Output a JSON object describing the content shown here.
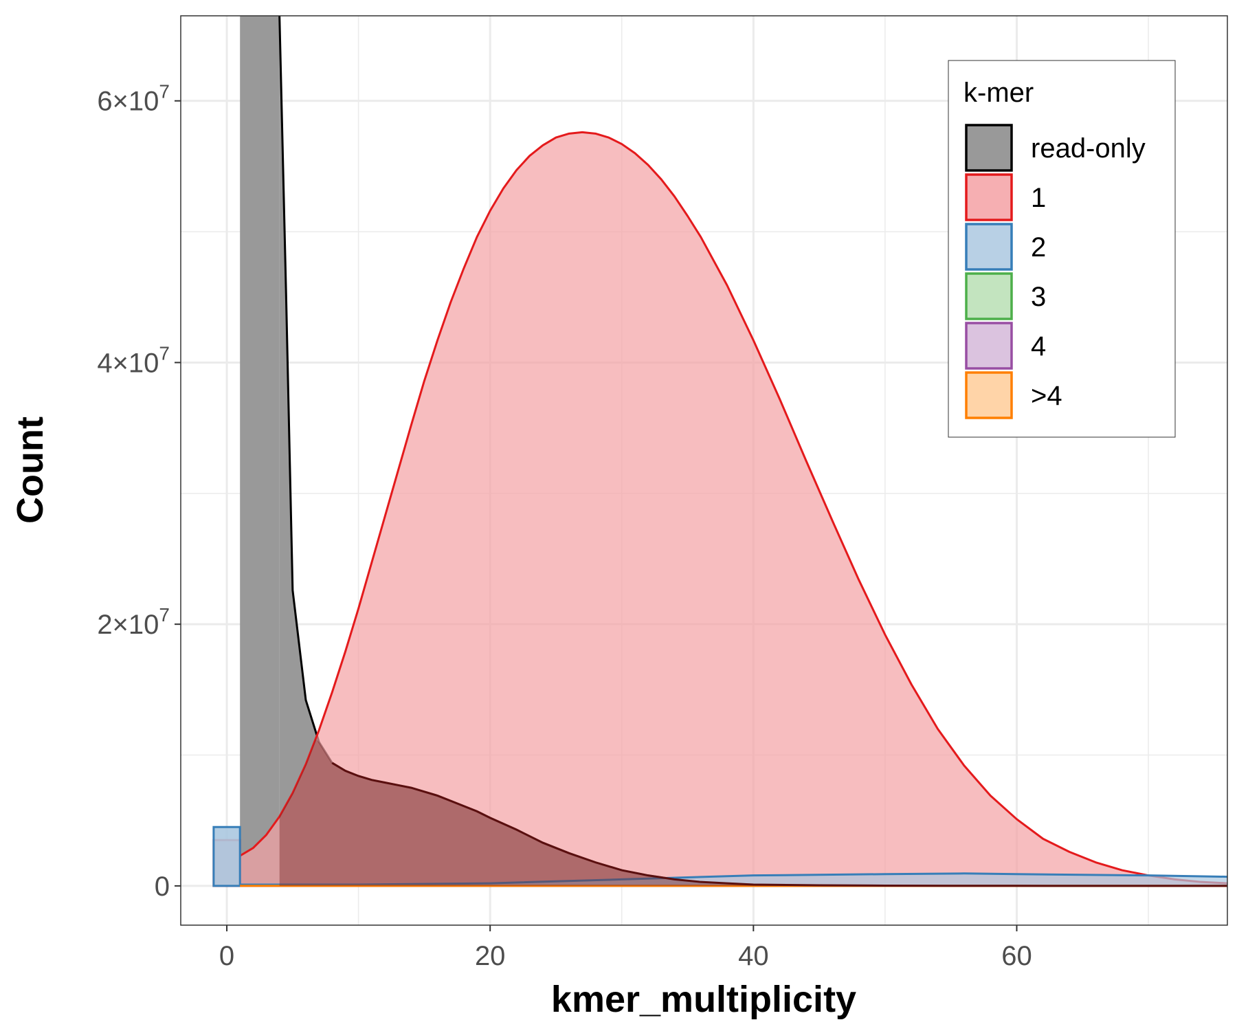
{
  "chart_data": {
    "type": "area",
    "xlabel": "kmer_multiplicity",
    "ylabel": "Count",
    "xlim": [
      -3.5,
      76
    ],
    "ylim": [
      -3000000,
      66500000
    ],
    "x_ticks": [
      {
        "value": 0,
        "label": "0"
      },
      {
        "value": 20,
        "label": "20"
      },
      {
        "value": 40,
        "label": "40"
      },
      {
        "value": 60,
        "label": "60"
      }
    ],
    "y_ticks": [
      {
        "value": 0,
        "mantissa": "0",
        "exponent": ""
      },
      {
        "value": 20000000,
        "mantissa": "2",
        "exponent": "7"
      },
      {
        "value": 40000000,
        "mantissa": "4",
        "exponent": "7"
      },
      {
        "value": 60000000,
        "mantissa": "6",
        "exponent": "7"
      }
    ],
    "grid": true,
    "legend": {
      "title": "k-mer",
      "placement": "top-right",
      "entries": [
        "read-only",
        "1",
        "2",
        "3",
        "4",
        ">4"
      ]
    },
    "series": [
      {
        "name": "read-only",
        "fill": "#999999",
        "stroke": "#000000",
        "bar": {
          "x0": 1,
          "x1": 4,
          "y": 66500000
        },
        "x": [
          4,
          4.5,
          5,
          6,
          7,
          8,
          9,
          10,
          11,
          12,
          13,
          14,
          15,
          16,
          17,
          18,
          19,
          20,
          22,
          24,
          26,
          28,
          30,
          32,
          34,
          36,
          38,
          40,
          45,
          50,
          55,
          60,
          65,
          70,
          76
        ],
        "values": [
          66500000,
          45300000,
          22600000,
          14200000,
          11000000,
          9400000,
          8800000,
          8400000,
          8100000,
          7900000,
          7700000,
          7500000,
          7200000,
          6900000,
          6500000,
          6100000,
          5700000,
          5200000,
          4300000,
          3300000,
          2500000,
          1800000,
          1200000,
          800000,
          500000,
          300000,
          200000,
          100000,
          50000,
          20000,
          10000,
          5000,
          0,
          0,
          0
        ]
      },
      {
        "name": "1",
        "fill": "#f4a1a4",
        "stroke": "#e41a1c",
        "bar": {
          "x0": -1,
          "x1": 1,
          "y": 3500000
        },
        "x": [
          1,
          2,
          3,
          4,
          5,
          6,
          7,
          8,
          9,
          10,
          11,
          12,
          13,
          14,
          15,
          16,
          17,
          18,
          19,
          20,
          21,
          22,
          23,
          24,
          25,
          26,
          27,
          28,
          29,
          30,
          31,
          32,
          33,
          34,
          35,
          36,
          38,
          40,
          42,
          44,
          46,
          48,
          50,
          52,
          54,
          56,
          58,
          60,
          62,
          64,
          66,
          68,
          70,
          72,
          74,
          76
        ],
        "values": [
          2300000,
          2900000,
          3900000,
          5300000,
          7100000,
          9300000,
          11900000,
          14800000,
          17900000,
          21200000,
          24700000,
          28200000,
          31700000,
          35200000,
          38600000,
          41700000,
          44600000,
          47200000,
          49600000,
          51600000,
          53300000,
          54700000,
          55800000,
          56600000,
          57200000,
          57500000,
          57600000,
          57500000,
          57200000,
          56700000,
          56000000,
          55100000,
          54000000,
          52700000,
          51200000,
          49600000,
          45900000,
          41700000,
          37200000,
          32500000,
          27900000,
          23400000,
          19200000,
          15400000,
          12000000,
          9200000,
          6900000,
          5100000,
          3600000,
          2600000,
          1800000,
          1200000,
          800000,
          500000,
          300000,
          200000
        ]
      },
      {
        "name": "2",
        "fill": "#abc8e0",
        "stroke": "#377eb8",
        "bar": {
          "x0": -1,
          "x1": 1,
          "y": 4500000
        },
        "x": [
          1,
          10,
          20,
          30,
          40,
          50,
          56,
          60,
          70,
          76
        ],
        "values": [
          100000,
          100000,
          200000,
          500000,
          800000,
          900000,
          950000,
          900000,
          800000,
          700000
        ]
      },
      {
        "name": "3",
        "fill": "#b8dfb4",
        "stroke": "#4daf4a",
        "x": [
          1,
          76
        ],
        "values": [
          0,
          0
        ]
      },
      {
        "name": "4",
        "fill": "#d5b9d9",
        "stroke": "#984ea3",
        "x": [
          1,
          76
        ],
        "values": [
          0,
          0
        ]
      },
      {
        "name": ">4",
        "fill": "#ffcc99",
        "stroke": "#ff7f00",
        "x": [
          1,
          76
        ],
        "values": [
          0,
          0
        ]
      }
    ]
  }
}
